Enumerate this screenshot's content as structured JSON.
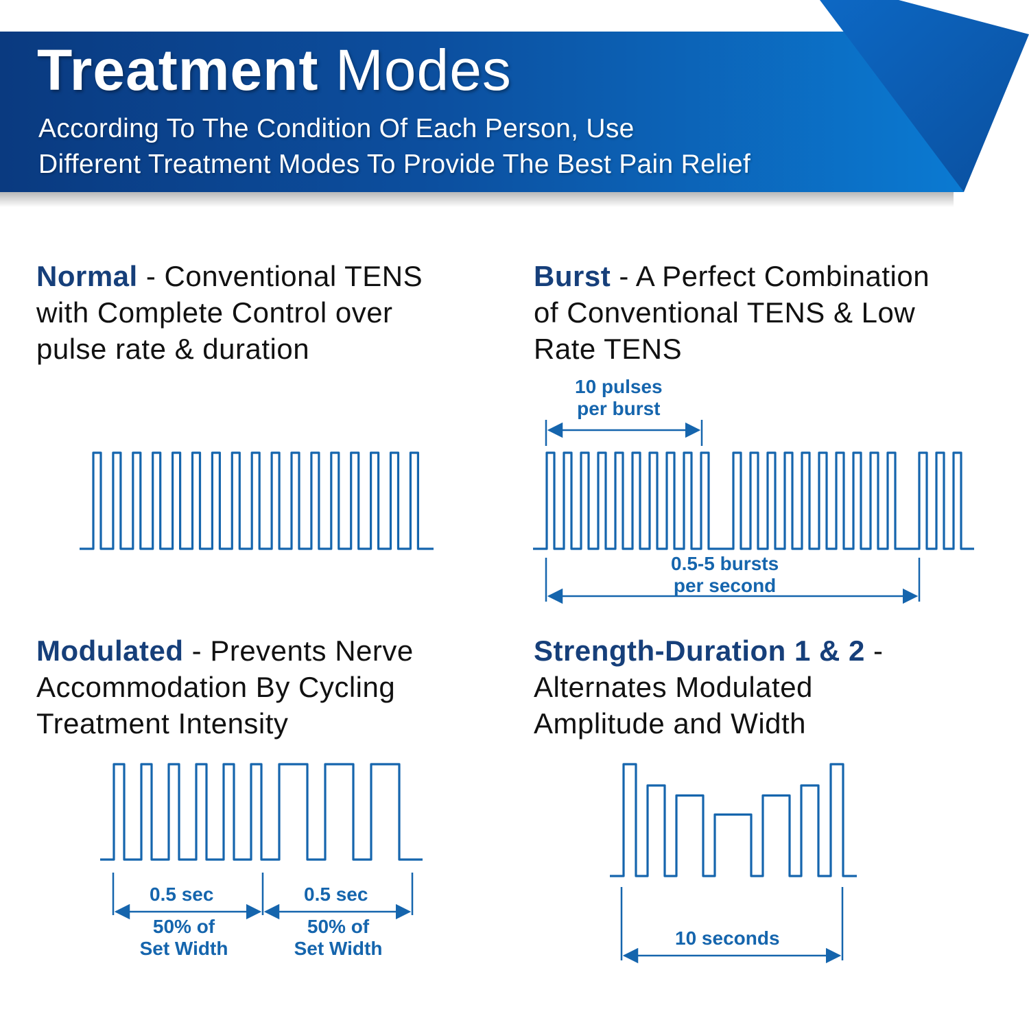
{
  "banner": {
    "title_bold": "Treatment",
    "title_light": "Modes",
    "subtitle_line1": "According To The Condition Of Each Person, Use",
    "subtitle_line2": "Different Treatment Modes To Provide The Best Pain Relief",
    "colors": {
      "dark": "#0a3d86",
      "mid": "#0d5cb3",
      "light": "#0b78cf",
      "fold": "#0c62ba"
    }
  },
  "modes": [
    {
      "name": "Normal",
      "sep": " - ",
      "description": "Conventional TENS with Complete Control over pulse rate & duration",
      "lines": [
        "Conventional TENS",
        "with Complete Control over",
        "pulse rate & duration"
      ],
      "waveform": {
        "pulses": 17,
        "labels": []
      }
    },
    {
      "name": "Burst",
      "sep": " - ",
      "description": "A Perfect Combination of Conventional TENS & Low Rate TENS",
      "lines": [
        "A Perfect Combination",
        "of Conventional TENS & Low",
        "Rate TENS"
      ],
      "waveform": {
        "bursts": [
          10,
          10,
          3
        ],
        "labels": [
          {
            "line1": "10 pulses",
            "line2": "per burst"
          },
          {
            "line1": "0.5-5 bursts",
            "line2": "per second"
          }
        ]
      }
    },
    {
      "name": "Modulated",
      "sep": " - ",
      "description": "Prevents Nerve Accommodation By Cycling Treatment Intensity",
      "lines": [
        "Prevents Nerve",
        "Accommodation By Cycling",
        "Treatment Intensity"
      ],
      "waveform": {
        "narrow_pulses": 6,
        "wide_pulses": 3,
        "labels": [
          {
            "top": "0.5 sec",
            "line1": "50% of",
            "line2": "Set Width"
          },
          {
            "top": "0.5 sec",
            "line1": "50% of",
            "line2": "Set Width"
          }
        ]
      }
    },
    {
      "name": "Strength-Duration 1 & 2",
      "sep": " -",
      "description": "Alternates Modulated Amplitude and Width",
      "lines": [
        "",
        "Alternates Modulated",
        "Amplitude and Width"
      ],
      "waveform": {
        "pulse_heights_pct": [
          100,
          81,
          72,
          55,
          72,
          81,
          100
        ],
        "labels": [
          {
            "line1": "10 seconds"
          }
        ]
      }
    }
  ],
  "chart_data": [
    {
      "type": "line",
      "title": "Normal",
      "description": "Constant-amplitude square pulse train",
      "pulse_count": 17,
      "amplitude": [
        1,
        1,
        1,
        1,
        1,
        1,
        1,
        1,
        1,
        1,
        1,
        1,
        1,
        1,
        1,
        1,
        1
      ]
    },
    {
      "type": "line",
      "title": "Burst",
      "description": "Pulse bursts separated by gaps",
      "bursts": [
        10,
        10,
        3
      ],
      "annotations": [
        "10 pulses per burst",
        "0.5-5 bursts per second"
      ]
    },
    {
      "type": "line",
      "title": "Modulated",
      "description": "Narrow pulses then wide pulses, each segment 0.5 sec",
      "segments": [
        {
          "label": "0.5 sec",
          "sublabel": "50% of Set Width",
          "pulses": 6,
          "width": "narrow"
        },
        {
          "label": "0.5 sec",
          "sublabel": "50% of Set Width",
          "pulses": 3,
          "width": "wide"
        }
      ]
    },
    {
      "type": "line",
      "title": "Strength-Duration 1 & 2",
      "description": "Pulse amplitude decreases while width increases, then reverses",
      "pulse_heights_pct": [
        100,
        81,
        72,
        55,
        72,
        81,
        100
      ],
      "pulse_widths_rel": [
        1,
        1.4,
        2.1,
        2.8,
        2.1,
        1.4,
        1
      ],
      "annotations": [
        "10 seconds"
      ]
    }
  ]
}
